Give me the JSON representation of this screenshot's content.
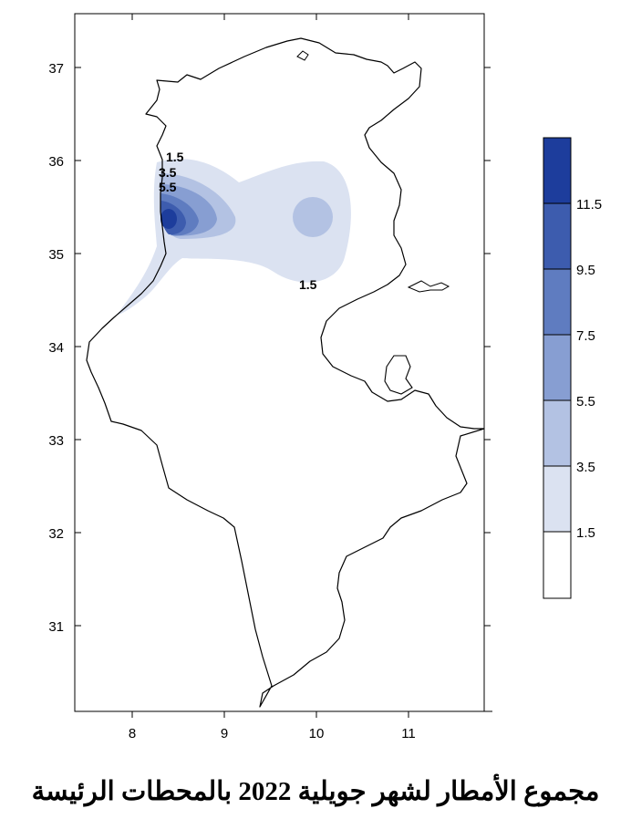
{
  "map": {
    "x_ticks": [
      "8",
      "9",
      "10",
      "11"
    ],
    "y_ticks": [
      "37",
      "36",
      "35",
      "34",
      "33",
      "32",
      "31"
    ],
    "contour_labels": [
      "1.5",
      "3.5",
      "5.5",
      "1.5"
    ]
  },
  "legend": {
    "labels": [
      "11.5",
      "9.5",
      "7.5",
      "5.5",
      "3.5",
      "1.5"
    ],
    "colors": [
      "#1d3d9c",
      "#3d5cae",
      "#5f7cc0",
      "#879ed2",
      "#b3c2e3",
      "#dbe2f1",
      "#ffffff"
    ]
  },
  "caption": "مجموع الأمطار لشهر جويلية 2022 بالمحطات الرئيسة"
}
